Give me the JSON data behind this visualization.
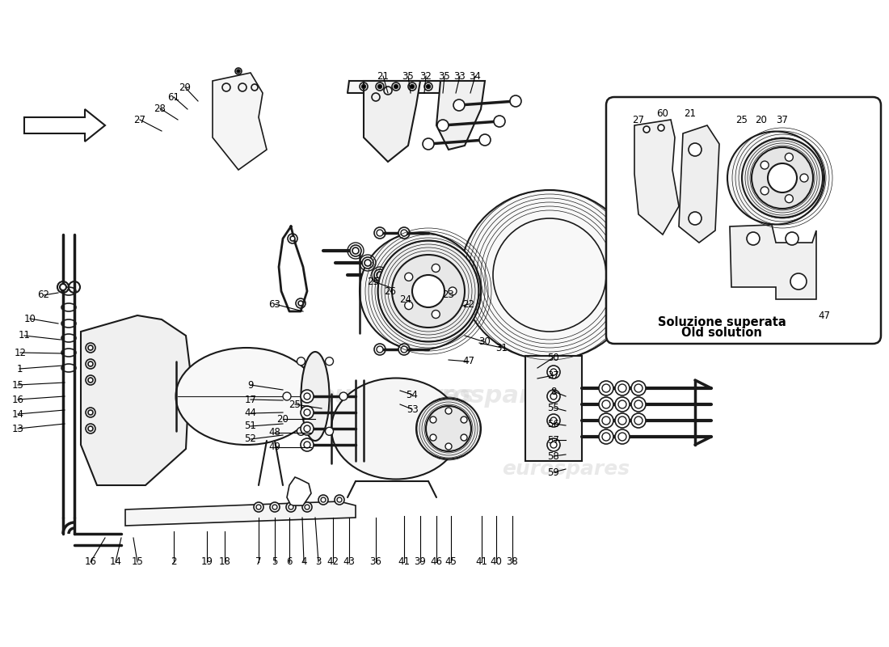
{
  "bg_color": "#ffffff",
  "lc": "#1a1a1a",
  "fig_width": 11.0,
  "fig_height": 8.0,
  "inset_label_line1": "Soluzione superata",
  "inset_label_line2": "Old solution",
  "watermark": "eurospares",
  "wm_color": "#d0d0d0",
  "wm_alpha": 0.45,
  "labels": [
    [
      229,
      108,
      245,
      125,
      "29"
    ],
    [
      215,
      120,
      232,
      135,
      "61"
    ],
    [
      198,
      134,
      220,
      148,
      "28"
    ],
    [
      173,
      148,
      200,
      162,
      "27"
    ],
    [
      474,
      94,
      480,
      115,
      "21"
    ],
    [
      505,
      94,
      508,
      115,
      "35"
    ],
    [
      527,
      94,
      525,
      115,
      "32"
    ],
    [
      550,
      94,
      548,
      115,
      "35"
    ],
    [
      569,
      94,
      564,
      115,
      "33"
    ],
    [
      588,
      94,
      582,
      115,
      "34"
    ],
    [
      54,
      365,
      72,
      362,
      "62"
    ],
    [
      37,
      394,
      72,
      400,
      "10"
    ],
    [
      30,
      415,
      75,
      420,
      "11"
    ],
    [
      25,
      436,
      78,
      437,
      "12"
    ],
    [
      24,
      456,
      78,
      452,
      "1"
    ],
    [
      22,
      476,
      80,
      473,
      "15"
    ],
    [
      22,
      494,
      80,
      490,
      "16"
    ],
    [
      22,
      512,
      80,
      507,
      "14"
    ],
    [
      22,
      530,
      80,
      524,
      "13"
    ],
    [
      112,
      695,
      130,
      665,
      "16"
    ],
    [
      143,
      695,
      150,
      665,
      "14"
    ],
    [
      170,
      695,
      165,
      665,
      "15"
    ],
    [
      215,
      695,
      215,
      657,
      "2"
    ],
    [
      256,
      695,
      256,
      657,
      "19"
    ],
    [
      278,
      695,
      278,
      657,
      "18"
    ],
    [
      320,
      695,
      320,
      640,
      "7"
    ],
    [
      340,
      695,
      340,
      640,
      "5"
    ],
    [
      358,
      695,
      358,
      640,
      "6"
    ],
    [
      376,
      695,
      374,
      640,
      "4"
    ],
    [
      394,
      695,
      390,
      640,
      "3"
    ],
    [
      412,
      695,
      412,
      640,
      "42"
    ],
    [
      432,
      695,
      432,
      640,
      "43"
    ],
    [
      465,
      695,
      465,
      640,
      "36"
    ],
    [
      500,
      695,
      500,
      638,
      "41"
    ],
    [
      520,
      695,
      520,
      638,
      "39"
    ],
    [
      540,
      695,
      540,
      638,
      "46"
    ],
    [
      558,
      695,
      558,
      638,
      "45"
    ],
    [
      596,
      695,
      596,
      638,
      "41"
    ],
    [
      614,
      695,
      614,
      638,
      "40"
    ],
    [
      634,
      695,
      634,
      638,
      "38"
    ],
    [
      365,
      500,
      398,
      505,
      "25"
    ],
    [
      350,
      518,
      390,
      518,
      "20"
    ],
    [
      340,
      535,
      385,
      535,
      "48"
    ],
    [
      340,
      553,
      385,
      553,
      "49"
    ],
    [
      310,
      476,
      350,
      482,
      "9"
    ],
    [
      310,
      494,
      350,
      495,
      "17"
    ],
    [
      310,
      511,
      350,
      510,
      "44"
    ],
    [
      310,
      527,
      350,
      524,
      "51"
    ],
    [
      310,
      543,
      350,
      538,
      "52"
    ],
    [
      462,
      348,
      490,
      358,
      "25"
    ],
    [
      483,
      360,
      506,
      367,
      "26"
    ],
    [
      502,
      371,
      522,
      376,
      "24"
    ],
    [
      555,
      364,
      540,
      374,
      "23"
    ],
    [
      580,
      376,
      558,
      382,
      "22"
    ],
    [
      600,
      423,
      575,
      415,
      "30"
    ],
    [
      621,
      430,
      593,
      424,
      "31"
    ],
    [
      580,
      447,
      555,
      445,
      "47"
    ],
    [
      685,
      442,
      665,
      455,
      "50"
    ],
    [
      685,
      464,
      665,
      468,
      "37"
    ],
    [
      685,
      484,
      700,
      490,
      "8"
    ],
    [
      685,
      504,
      700,
      508,
      "55"
    ],
    [
      685,
      524,
      700,
      526,
      "56"
    ],
    [
      685,
      544,
      700,
      544,
      "57"
    ],
    [
      685,
      564,
      700,
      562,
      "58"
    ],
    [
      685,
      584,
      700,
      580,
      "59"
    ],
    [
      510,
      488,
      495,
      483,
      "54"
    ],
    [
      510,
      506,
      495,
      500,
      "53"
    ],
    [
      790,
      148,
      815,
      165,
      "27"
    ],
    [
      820,
      140,
      835,
      155,
      "60"
    ],
    [
      854,
      140,
      858,
      155,
      "21"
    ],
    [
      918,
      148,
      915,
      165,
      "25"
    ],
    [
      942,
      148,
      935,
      165,
      "20"
    ],
    [
      968,
      148,
      958,
      165,
      "37"
    ],
    [
      1020,
      390,
      1000,
      375,
      "47"
    ],
    [
      340,
      376,
      375,
      385,
      "63"
    ]
  ]
}
